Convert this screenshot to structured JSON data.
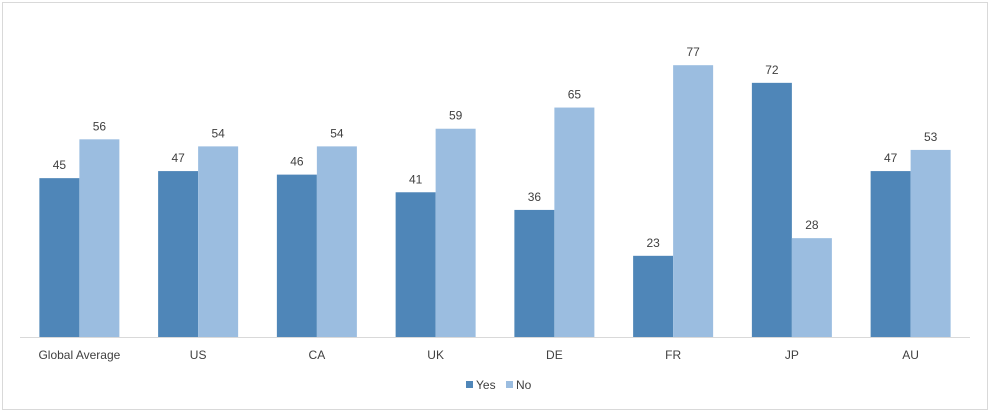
{
  "chart_data": {
    "type": "bar",
    "title": "",
    "xlabel": "",
    "ylabel": "",
    "ylim": [
      0,
      80
    ],
    "grid": false,
    "legend_position": "bottom",
    "categories": [
      "Global Average",
      "US",
      "CA",
      "UK",
      "DE",
      "FR",
      "JP",
      "AU"
    ],
    "series": [
      {
        "name": "Yes",
        "color": "#4f86b8",
        "values": [
          45,
          47,
          46,
          41,
          36,
          23,
          72,
          47
        ]
      },
      {
        "name": "No",
        "color": "#9bbde0",
        "values": [
          56,
          54,
          54,
          59,
          65,
          77,
          28,
          53
        ]
      }
    ]
  }
}
